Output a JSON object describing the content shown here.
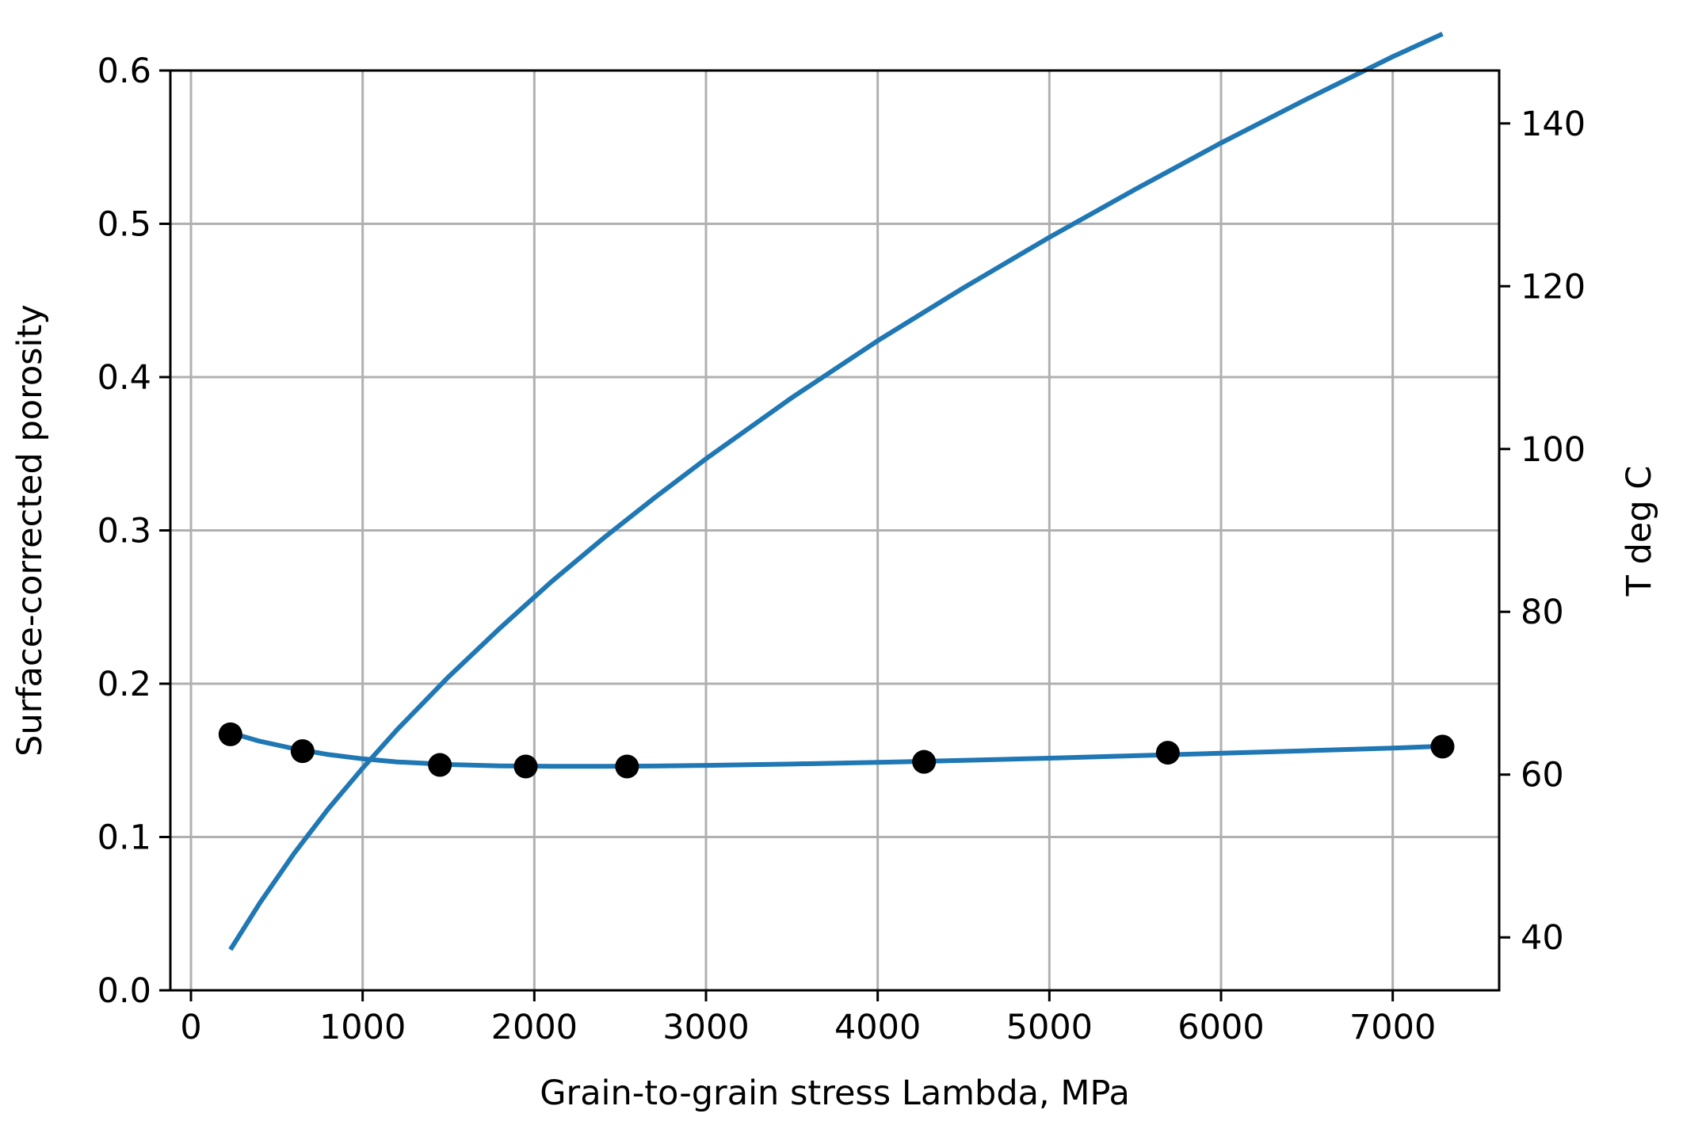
{
  "chart_data": {
    "type": "line",
    "title": "",
    "xlabel": "Grain-to-grain stress Lambda, MPa",
    "ylabel": "Surface-corrected  porosity",
    "y2label": "T deg C",
    "xlim": [
      -120,
      7620
    ],
    "ylim": [
      0.0,
      0.6
    ],
    "y2lim": [
      33.5,
      146.5
    ],
    "xticks": [
      0,
      1000,
      2000,
      3000,
      4000,
      5000,
      6000,
      7000
    ],
    "yticks": [
      0.0,
      0.1,
      0.2,
      0.3,
      0.4,
      0.5,
      0.6
    ],
    "y2ticks": [
      40,
      60,
      80,
      100,
      120,
      140
    ],
    "grid": true,
    "colors": {
      "line": "#1f77b4",
      "points": "#000000",
      "grid": "#b0b0b0",
      "axes": "#000000"
    },
    "scatter": {
      "x": [
        230,
        650,
        1450,
        1950,
        2540,
        4270,
        5690,
        7290
      ],
      "y": [
        0.167,
        0.156,
        0.147,
        0.146,
        0.146,
        0.149,
        0.155,
        0.159
      ]
    },
    "series": [
      {
        "axis": "left",
        "x": [
          230,
          400,
          600,
          800,
          1000,
          1200,
          1500,
          1800,
          2100,
          2400,
          2700,
          3000,
          3500,
          4000,
          4500,
          5000,
          5500,
          6000,
          6500,
          7000,
          7290
        ],
        "y": [
          0.168,
          0.1625,
          0.1576,
          0.1538,
          0.151,
          0.149,
          0.1473,
          0.1464,
          0.1461,
          0.1461,
          0.1463,
          0.1467,
          0.1476,
          0.1487,
          0.15,
          0.1514,
          0.153,
          0.1546,
          0.1563,
          0.158,
          0.1592
        ]
      },
      {
        "axis": "right",
        "x": [
          230,
          400,
          600,
          800,
          1000,
          1200,
          1500,
          1800,
          2100,
          2400,
          2700,
          3000,
          3500,
          4000,
          4500,
          5000,
          5500,
          6000,
          6500,
          7000,
          7290
        ],
        "y": [
          38.5,
          44.2,
          50.3,
          55.8,
          60.8,
          65.5,
          72.0,
          78.0,
          83.7,
          89.0,
          94.0,
          98.8,
          106.3,
          113.3,
          119.8,
          126.0,
          131.9,
          137.6,
          143.0,
          148.2,
          151.0
        ]
      }
    ]
  }
}
